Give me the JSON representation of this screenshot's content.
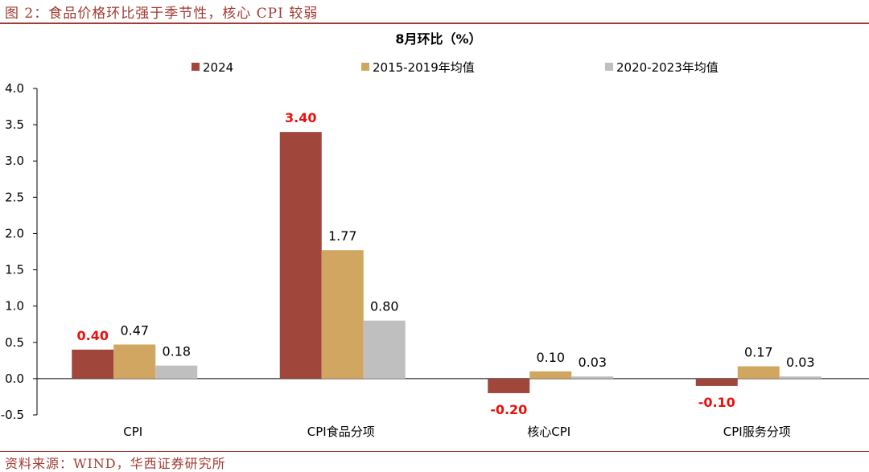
{
  "figure": {
    "caption": "图 2：食品价格环比强于季节性，核心 CPI 较弱",
    "source": "资料来源：WIND，华西证券研究所"
  },
  "chart_data": {
    "type": "bar",
    "title": "8月环比（%）",
    "categories": [
      "CPI",
      "CPI食品分项",
      "核心CPI",
      "CPI服务分项"
    ],
    "series": [
      {
        "name": "2024",
        "values": [
          0.4,
          3.4,
          -0.2,
          -0.1
        ],
        "color": "#a0463a",
        "label_color": "#e8110c",
        "label_bold": true
      },
      {
        "name": "2015-2019年均值",
        "values": [
          0.47,
          1.77,
          0.1,
          0.17
        ],
        "color": "#d1a660",
        "label_color": "#000000",
        "label_bold": false
      },
      {
        "name": "2020-2023年均值",
        "values": [
          0.18,
          0.8,
          0.03,
          0.03
        ],
        "color": "#bfbfbf",
        "label_color": "#000000",
        "label_bold": false
      }
    ],
    "ylim": [
      -0.5,
      4.0
    ],
    "yticks": [
      "4.0",
      "3.5",
      "3.0",
      "2.5",
      "2.0",
      "1.5",
      "1.0",
      "0.5",
      "0.0",
      "-0.5"
    ],
    "ytick_values": [
      4.0,
      3.5,
      3.0,
      2.5,
      2.0,
      1.5,
      1.0,
      0.5,
      0.0,
      -0.5
    ],
    "legend_position": "top-center",
    "grid": false
  }
}
